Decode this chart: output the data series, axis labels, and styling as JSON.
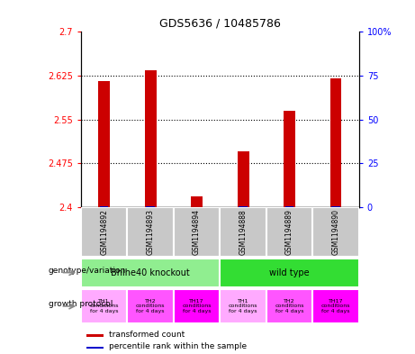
{
  "title": "GDS5636 / 10485786",
  "samples": [
    "GSM1194892",
    "GSM1194893",
    "GSM1194894",
    "GSM1194888",
    "GSM1194889",
    "GSM1194890"
  ],
  "red_values": [
    2.615,
    2.635,
    2.418,
    2.495,
    2.565,
    2.62
  ],
  "blue_percentile": [
    2,
    2,
    1,
    2,
    2,
    2
  ],
  "ylim_left": [
    2.4,
    2.7
  ],
  "ylim_right": [
    0,
    100
  ],
  "yticks_left": [
    2.4,
    2.475,
    2.55,
    2.625,
    2.7
  ],
  "yticks_right": [
    0,
    25,
    50,
    75,
    100
  ],
  "ytick_labels_left": [
    "2.4",
    "2.475",
    "2.55",
    "2.625",
    "2.7"
  ],
  "ytick_labels_right": [
    "0",
    "25",
    "50",
    "75",
    "100%"
  ],
  "genotype_group1_label": "Bhlhe40 knockout",
  "genotype_group1_color": "#90EE90",
  "genotype_group2_label": "wild type",
  "genotype_group2_color": "#33DD33",
  "growth_protocol_labels": [
    "TH1\nconditions\nfor 4 days",
    "TH2\nconditions\nfor 4 days",
    "TH17\nconditions\nfor 4 days",
    "TH1\nconditions\nfor 4 days",
    "TH2\nconditions\nfor 4 days",
    "TH17\nconditions\nfor 4 days"
  ],
  "growth_protocol_colors": [
    "#FFAAFF",
    "#FF55FF",
    "#FF00FF",
    "#FFAAFF",
    "#FF55FF",
    "#FF00FF"
  ],
  "bar_color_red": "#CC0000",
  "bar_color_blue": "#0000CC",
  "bar_width": 0.25,
  "blue_bar_width": 0.18,
  "legend_red": "transformed count",
  "legend_blue": "percentile rank within the sample",
  "label_genotype": "genotype/variation",
  "label_growth": "growth protocol",
  "sample_bg_color": "#C8C8C8",
  "grid_color": "#000000",
  "grid_linestyle": ":",
  "grid_linewidth": 0.8
}
